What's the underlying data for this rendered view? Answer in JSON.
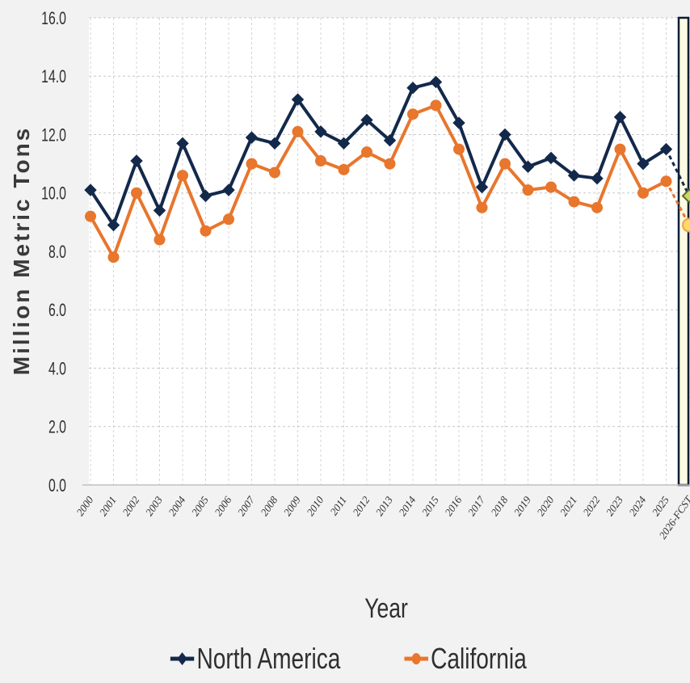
{
  "chart_data": {
    "type": "line",
    "xlabel": "Year",
    "ylabel": "Million Metric Tons",
    "ylim": [
      0,
      16
    ],
    "yticks": [
      "0.0",
      "2.0",
      "4.0",
      "6.0",
      "8.0",
      "10.0",
      "12.0",
      "14.0",
      "16.0"
    ],
    "grid": true,
    "legend_position": "bottom",
    "categories": [
      "2000",
      "2001",
      "2002",
      "2003",
      "2004",
      "2005",
      "2006",
      "2007",
      "2008",
      "2009",
      "2010",
      "2011",
      "2012",
      "2013",
      "2014",
      "2015",
      "2016",
      "2017",
      "2018",
      "2019",
      "2020",
      "2021",
      "2022",
      "2023",
      "2024",
      "2025",
      "2026-FCST"
    ],
    "series": [
      {
        "name": "North America",
        "color": "#13294b",
        "marker": "diamond",
        "values": [
          10.1,
          8.9,
          11.1,
          9.4,
          11.7,
          9.9,
          10.1,
          11.9,
          11.7,
          13.2,
          12.1,
          11.7,
          12.5,
          11.8,
          13.6,
          13.8,
          12.4,
          10.2,
          12.0,
          10.9,
          11.2,
          10.6,
          10.5,
          12.6,
          11.0,
          11.5,
          9.9
        ]
      },
      {
        "name": "California",
        "color": "#e8762d",
        "marker": "circle",
        "values": [
          9.2,
          7.8,
          10.0,
          8.4,
          10.6,
          8.7,
          9.1,
          11.0,
          10.7,
          12.1,
          11.1,
          10.8,
          11.4,
          11.0,
          12.7,
          13.0,
          11.5,
          9.5,
          11.0,
          10.1,
          10.2,
          9.7,
          9.5,
          11.5,
          10.0,
          10.4,
          8.9
        ]
      }
    ],
    "forecast": {
      "category": "2026-FCST",
      "highlight_color": "#fdfbe3",
      "north_america_marker_color": "#c9d86b",
      "california_marker_color": "#ffd966"
    }
  }
}
